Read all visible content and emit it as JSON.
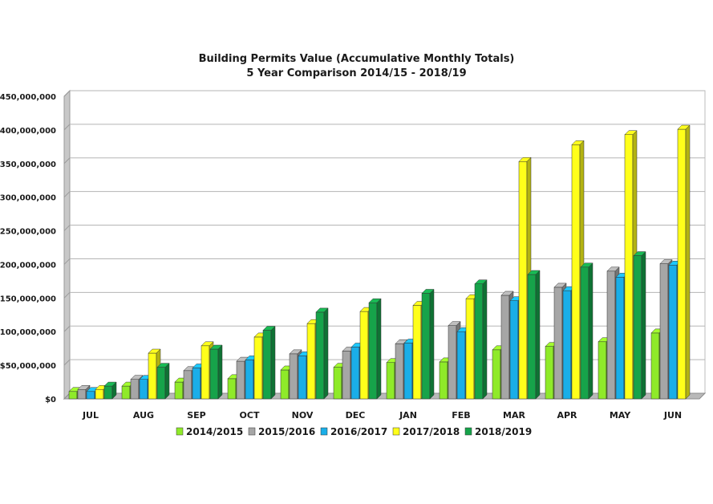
{
  "chart_data": {
    "type": "bar",
    "title": "Building Permits Value (Accumulative Monthly Totals)",
    "subtitle": "5 Year Comparison 2014/15 - 2018/19",
    "xlabel": "",
    "ylabel": "",
    "ylim": [
      0,
      450000000
    ],
    "yticks": [
      0,
      50000000,
      100000000,
      150000000,
      200000000,
      250000000,
      300000000,
      350000000,
      400000000,
      450000000
    ],
    "ytick_labels": [
      "$0",
      "$50,000,000",
      "$100,000,000",
      "$150,000,000",
      "$200,000,000",
      "$250,000,000",
      "$300,000,000",
      "$350,000,000",
      "$400,000,000",
      "$450,000,000"
    ],
    "grid": true,
    "legend_position": "bottom",
    "categories": [
      "JUL",
      "AUG",
      "SEP",
      "OCT",
      "NOV",
      "DEC",
      "JAN",
      "FEB",
      "MAR",
      "APR",
      "MAY",
      "JUN"
    ],
    "series": [
      {
        "name": "2014/2015",
        "color": "#8fea29",
        "values": [
          11000000,
          19000000,
          25000000,
          30000000,
          43000000,
          47000000,
          54000000,
          55000000,
          73000000,
          78000000,
          85000000,
          98000000
        ]
      },
      {
        "name": "2015/2016",
        "color": "#a6a6a6",
        "values": [
          14000000,
          29000000,
          42000000,
          56000000,
          67000000,
          71000000,
          82000000,
          109000000,
          154000000,
          166000000,
          190000000,
          201000000
        ]
      },
      {
        "name": "2016/2017",
        "color": "#1aaee8",
        "values": [
          11000000,
          29000000,
          46000000,
          58000000,
          64000000,
          77000000,
          83000000,
          100000000,
          146000000,
          161000000,
          181000000,
          199000000
        ]
      },
      {
        "name": "2017/2018",
        "color": "#ffff1a",
        "values": [
          14000000,
          68000000,
          79000000,
          92000000,
          112000000,
          130000000,
          139000000,
          149000000,
          353000000,
          378000000,
          393000000,
          401000000
        ]
      },
      {
        "name": "2018/2019",
        "color": "#16a34a",
        "values": [
          19000000,
          47000000,
          74000000,
          102000000,
          129000000,
          143000000,
          157000000,
          171000000,
          185000000,
          196000000,
          213000000,
          null
        ]
      }
    ]
  }
}
